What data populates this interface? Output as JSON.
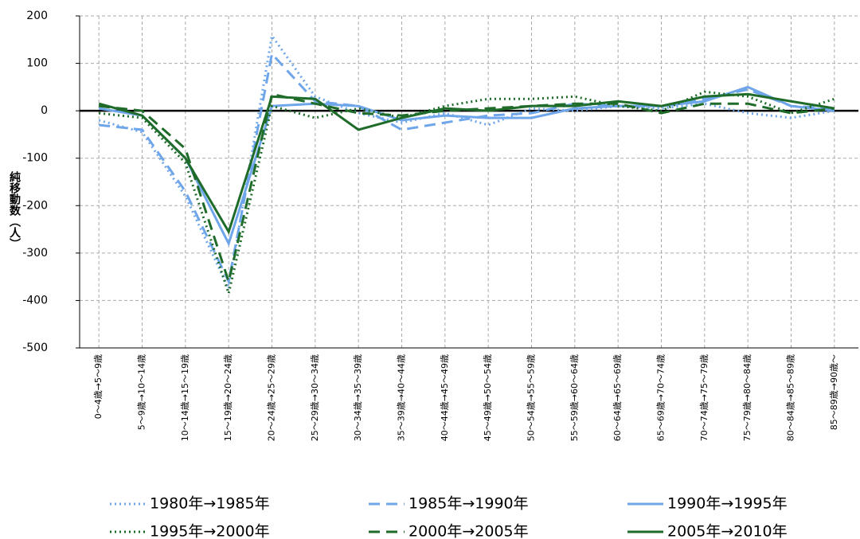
{
  "chart_data": {
    "type": "line",
    "y_label": "純移動数（人）",
    "categories": [
      "0～4歳→5～9歳",
      "5～9歳→10～14歳",
      "10～14歳→15～19歳",
      "15～19歳→20～24歳",
      "20～24歳→25～29歳",
      "25～29歳→30～34歳",
      "30～34歳→35～39歳",
      "35～39歳→40～44歳",
      "40～44歳→45～49歳",
      "45～49歳→50～54歳",
      "50～54歳→55～59歳",
      "55～59歳→60～64歳",
      "60～64歳→65～69歳",
      "65～69歳→70～74歳",
      "70～74歳→75～79歳",
      "75～79歳→80～84歳",
      "80～84歳→85～89歳",
      "85～89歳→90歳～"
    ],
    "series": [
      {
        "name": "1980年→1985年",
        "color": "#6fa6ea",
        "line_style": "dotted",
        "values": [
          -20,
          -45,
          -180,
          -375,
          158,
          30,
          -5,
          -25,
          -5,
          -30,
          5,
          0,
          10,
          5,
          15,
          -5,
          -15,
          0
        ]
      },
      {
        "name": "1985年→1990年",
        "color": "#6fa6ea",
        "line_style": "dashed",
        "values": [
          -30,
          -40,
          -170,
          -360,
          120,
          20,
          10,
          -40,
          -25,
          -10,
          -5,
          15,
          10,
          10,
          25,
          45,
          10,
          5
        ]
      },
      {
        "name": "1990年→1995年",
        "color": "#6fa6ea",
        "line_style": "solid",
        "values": [
          5,
          -10,
          -100,
          -280,
          10,
          15,
          10,
          -20,
          -10,
          -15,
          -15,
          5,
          10,
          10,
          20,
          50,
          10,
          0
        ]
      },
      {
        "name": "1995年→2000年",
        "color": "#1e6b2a",
        "line_style": "dotted",
        "values": [
          -5,
          -15,
          -110,
          -385,
          10,
          -15,
          5,
          -15,
          10,
          25,
          25,
          30,
          10,
          0,
          40,
          30,
          -5,
          25
        ]
      },
      {
        "name": "2000年→2005年",
        "color": "#1e6b2a",
        "line_style": "dashed",
        "values": [
          10,
          0,
          -80,
          -360,
          35,
          15,
          -5,
          -10,
          0,
          5,
          10,
          15,
          15,
          -5,
          15,
          15,
          -5,
          5
        ]
      },
      {
        "name": "2005年→2010年",
        "color": "#1e6b2a",
        "line_style": "solid",
        "values": [
          15,
          -10,
          -100,
          -255,
          30,
          25,
          -40,
          -15,
          5,
          0,
          10,
          10,
          20,
          10,
          30,
          35,
          20,
          5
        ]
      }
    ],
    "ylim": [
      -500,
      200
    ],
    "yticks": [
      -500,
      -400,
      -300,
      -200,
      -100,
      0,
      100,
      200
    ],
    "grid": true
  }
}
